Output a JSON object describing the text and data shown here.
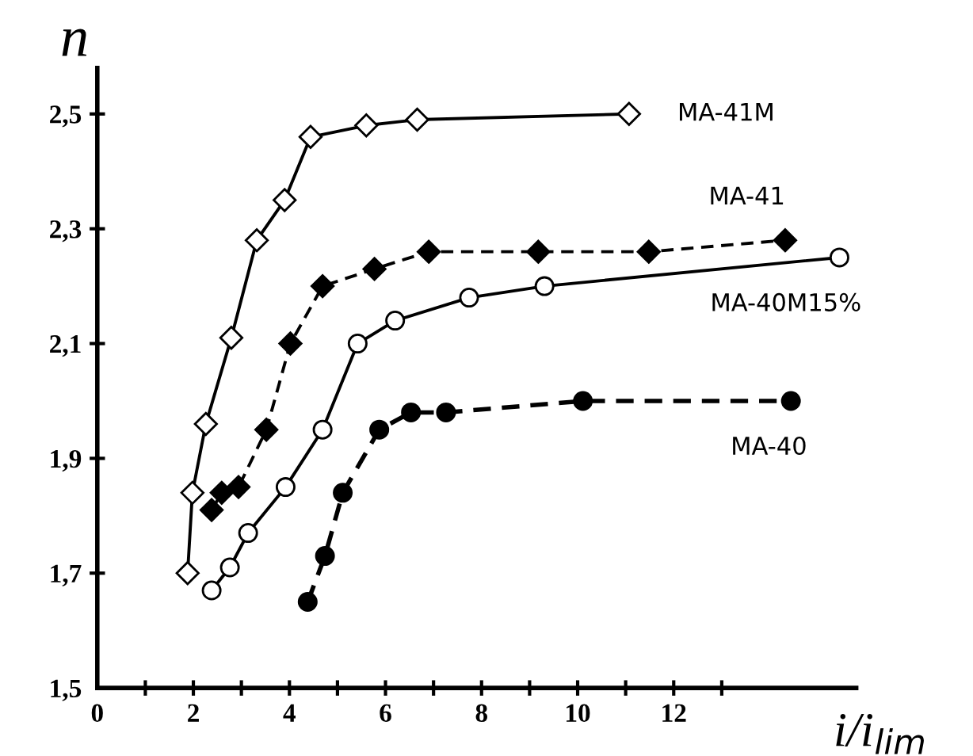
{
  "chart_data": {
    "type": "line",
    "xlabel": "i/i$_{lim}$",
    "ylabel": "n",
    "xlim": [
      0,
      15.8
    ],
    "ylim": [
      1.5,
      2.58
    ],
    "xticks": [
      0,
      {
        "value": 1,
        "label": null
      },
      2,
      {
        "value": 3,
        "label": null
      },
      4,
      {
        "value": 5,
        "label": null
      },
      6,
      {
        "value": 7,
        "label": null
      },
      8,
      {
        "value": 9,
        "label": null
      },
      10,
      {
        "value": 11,
        "label": null
      },
      12,
      {
        "value": 13,
        "label": null
      }
    ],
    "yticks": [
      {
        "value": 1.5,
        "label": "1,5"
      },
      {
        "value": 1.7,
        "label": "1,7"
      },
      {
        "value": 1.9,
        "label": "1,9"
      },
      {
        "value": 2.1,
        "label": "2,1"
      },
      {
        "value": 2.3,
        "label": "2,3"
      },
      {
        "value": 2.5,
        "label": "2,5"
      }
    ],
    "grid": false,
    "legend": false,
    "series": [
      {
        "name": "MA-41M",
        "color": "#000000",
        "marker": "diamond",
        "line_style": "solid",
        "x": [
          1.88,
          1.98,
          2.26,
          2.79,
          3.32,
          3.9,
          4.44,
          5.6,
          6.66,
          11.07
        ],
        "values": [
          1.7,
          1.84,
          1.96,
          2.11,
          2.28,
          2.35,
          2.46,
          2.48,
          2.49,
          2.5
        ]
      },
      {
        "name": "MA-41",
        "color": "#000000",
        "marker": "diamond",
        "line_style": "dashed",
        "x": [
          2.38,
          2.59,
          2.94,
          3.52,
          4.02,
          4.69,
          5.77,
          6.9,
          9.18,
          11.48,
          14.32
        ],
        "values": [
          1.81,
          1.84,
          1.85,
          1.95,
          2.1,
          2.2,
          2.23,
          2.26,
          2.26,
          2.26,
          2.28
        ]
      },
      {
        "name": "MA-40M15%",
        "color": "#000000",
        "marker": "circle",
        "line_style": "solid",
        "x": [
          2.38,
          2.76,
          3.14,
          3.92,
          4.69,
          5.42,
          6.2,
          7.74,
          9.31,
          15.45
        ],
        "values": [
          1.67,
          1.71,
          1.77,
          1.85,
          1.95,
          2.1,
          2.14,
          2.18,
          2.2,
          2.25
        ]
      },
      {
        "name": "MA-40",
        "color": "#000000",
        "marker": "circle",
        "line_style": "dashed",
        "x": [
          4.38,
          4.74,
          5.11,
          5.87,
          6.53,
          7.26,
          10.11,
          14.44
        ],
        "values": [
          1.65,
          1.73,
          1.84,
          1.95,
          1.98,
          1.98,
          2.0,
          2.0
        ]
      }
    ]
  }
}
